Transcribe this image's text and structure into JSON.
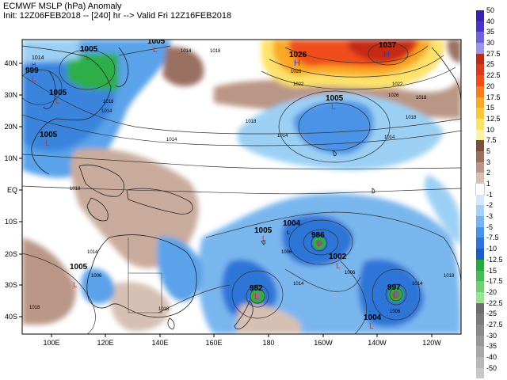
{
  "header": {
    "line1": "ECMWF MSLP (hPa) Anomaly",
    "line2": "Init: 12Z06FEB2018 -- [240] hr --> Valid Fri 12Z16FEB2018"
  },
  "axes": {
    "x_ticks": [
      "100E",
      "120E",
      "140E",
      "160E",
      "180",
      "160W",
      "140W",
      "120W"
    ],
    "y_ticks": [
      "40N",
      "30N",
      "20N",
      "10N",
      "EQ",
      "10S",
      "20S",
      "30S",
      "40S"
    ]
  },
  "centers": [
    {
      "type": "L",
      "value": "1005"
    },
    {
      "type": "L",
      "value": "1005"
    },
    {
      "type": "H",
      "value": "1014"
    },
    {
      "type": "L",
      "value": "999"
    },
    {
      "type": "L",
      "value": "1005"
    },
    {
      "type": "L",
      "value": "1005"
    },
    {
      "type": "H",
      "value": "1026"
    },
    {
      "type": "H",
      "value": "1037"
    },
    {
      "type": "L",
      "value": "1005"
    },
    {
      "type": "L",
      "value": "1004"
    },
    {
      "type": "L",
      "value": "1005"
    },
    {
      "type": "L",
      "value": "986"
    },
    {
      "type": "L",
      "value": "1002"
    },
    {
      "type": "L",
      "value": "1005"
    },
    {
      "type": "L",
      "value": "982"
    },
    {
      "type": "L",
      "value": "997"
    },
    {
      "type": "L",
      "value": "1004"
    }
  ],
  "isobar_labels": [
    "1014",
    "1018",
    "1018",
    "1014",
    "1018",
    "1014",
    "1018",
    "1022",
    "1026",
    "1026",
    "1022",
    "1018",
    "1014",
    "1014",
    "1018",
    "1014",
    "1006",
    "1006",
    "1014",
    "1006",
    "1018",
    "1014",
    "1018",
    "1006",
    "1018"
  ],
  "legend": {
    "labels": [
      "50",
      "40",
      "35",
      "30",
      "27.5",
      "25",
      "22.5",
      "20",
      "17.5",
      "15",
      "12.5",
      "10",
      "7.5",
      "5",
      "3",
      "2",
      "1",
      "-1",
      "-2",
      "-3",
      "-5",
      "-7.5",
      "-10",
      "-12.5",
      "-15",
      "-17.5",
      "-20",
      "-22.5",
      "-25",
      "-27.5",
      "-30",
      "-35",
      "-40",
      "-50"
    ],
    "colors": [
      "#3a1fb0",
      "#4a33c8",
      "#6f63dc",
      "#9a94ea",
      "#b82c18",
      "#dc3a1c",
      "#f04d1a",
      "#f77e1e",
      "#f9a828",
      "#fbc83a",
      "#fde26a",
      "#fdf3a5",
      "#7a5040",
      "#9a7060",
      "#b99686",
      "#d6c0b4",
      "#ffffff",
      "#d4e8f8",
      "#a6d0f4",
      "#78b4ee",
      "#4b93e6",
      "#2f74d8",
      "#1f5cc8",
      "#28a840",
      "#44bd52",
      "#6ed070",
      "#9ce296",
      "#6e6e6e",
      "#7c7c7c",
      "#8a8a8a",
      "#989898",
      "#a8a8a8",
      "#b8b8b8",
      "#c8c8c8"
    ]
  }
}
